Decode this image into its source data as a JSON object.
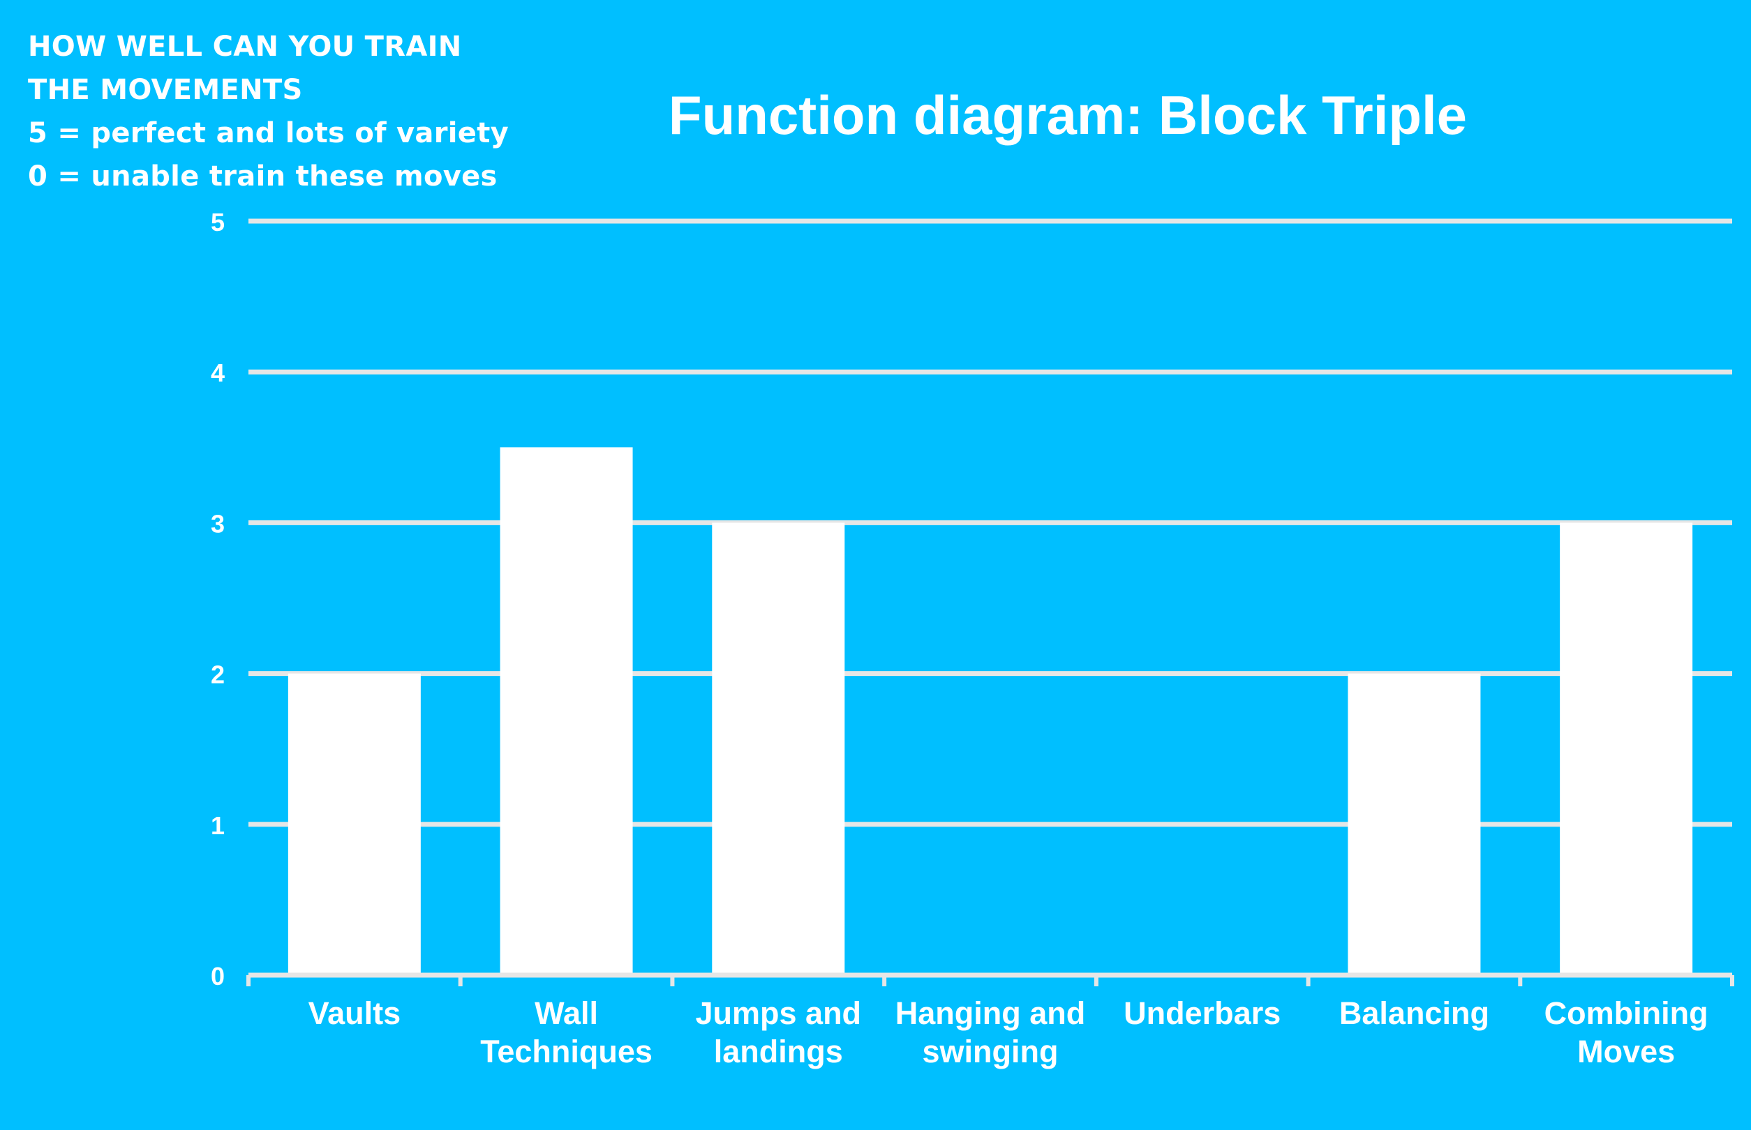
{
  "note": {
    "lines": [
      "HOW WELL CAN YOU TRAIN",
      "THE MOVEMENTS",
      "5 = perfect and lots of variety",
      "0 = unable train these moves"
    ]
  },
  "colors": {
    "background": "#00BFFF",
    "bar": "#FFFFFF",
    "grid": "#E6E6E6",
    "text": "#FFFFFF"
  },
  "chart_data": {
    "type": "bar",
    "title": "Function diagram: Block Triple",
    "xlabel": "",
    "ylabel": "",
    "categories": [
      "Vaults",
      "Wall Techniques",
      "Jumps and landings",
      "Hanging and swinging",
      "Underbars",
      "Balancing",
      "Combining Moves"
    ],
    "category_label_lines": [
      [
        "Vaults"
      ],
      [
        "Wall",
        "Techniques"
      ],
      [
        "Jumps and",
        "landings"
      ],
      [
        "Hanging and",
        "swinging"
      ],
      [
        "Underbars"
      ],
      [
        "Balancing"
      ],
      [
        "Combining",
        "Moves"
      ]
    ],
    "values": [
      2,
      3.5,
      3,
      0,
      0,
      2,
      3
    ],
    "ylim": [
      0,
      5
    ],
    "yticks": [
      "0",
      "1",
      "2",
      "3",
      "4",
      "5"
    ],
    "grid": true,
    "legend": "none"
  }
}
